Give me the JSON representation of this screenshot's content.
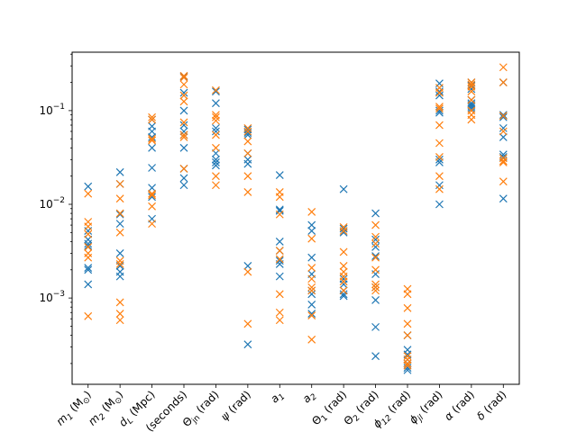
{
  "chart_data": {
    "type": "scatter",
    "y_scale": "log",
    "ylim": [
      0.00012,
      0.42
    ],
    "grid": false,
    "legend": "none",
    "marker": "x",
    "y_ticks": [
      {
        "value": 0.001,
        "base": "10",
        "exp": "−3"
      },
      {
        "value": 0.01,
        "base": "10",
        "exp": "−2"
      },
      {
        "value": 0.1,
        "base": "10",
        "exp": "−1"
      }
    ],
    "categories": [
      {
        "main": "m",
        "sub": "1",
        "unit": " (M",
        "unit_sub": "⊙",
        "close": ")"
      },
      {
        "main": "m",
        "sub": "2",
        "unit": " (M",
        "unit_sub": "⊙",
        "close": ")"
      },
      {
        "main": "d",
        "sub": "L",
        "unit": " (Mpc)",
        "unit_sub": "",
        "close": ""
      },
      {
        "main": "t",
        "sub": "c",
        "unit": " (seconds)",
        "unit_sub": "",
        "close": ""
      },
      {
        "main": "Θ",
        "sub": "jn",
        "unit": " (rad)",
        "unit_sub": "",
        "close": ""
      },
      {
        "main": "ψ",
        "sub": "",
        "unit": " (rad)",
        "unit_sub": "",
        "close": ""
      },
      {
        "main": "a",
        "sub": "1",
        "unit": "",
        "unit_sub": "",
        "close": ""
      },
      {
        "main": "a",
        "sub": "2",
        "unit": "",
        "unit_sub": "",
        "close": ""
      },
      {
        "main": "Θ",
        "sub": "1",
        "unit": " (rad)",
        "unit_sub": "",
        "close": ""
      },
      {
        "main": "Θ",
        "sub": "2",
        "unit": " (rad)",
        "unit_sub": "",
        "close": ""
      },
      {
        "main": "ϕ",
        "sub": "12",
        "unit": " (rad)",
        "unit_sub": "",
        "close": ""
      },
      {
        "main": "ϕ",
        "sub": "jl",
        "unit": " (rad)",
        "unit_sub": "",
        "close": ""
      },
      {
        "main": "α",
        "sub": "",
        "unit": " (rad)",
        "unit_sub": "",
        "close": ""
      },
      {
        "main": "δ",
        "sub": "",
        "unit": " (rad)",
        "unit_sub": "",
        "close": ""
      }
    ],
    "series": [
      {
        "color": "#1f77b4",
        "values": [
          [
            0.0155,
            0.0052,
            0.0042,
            0.0038,
            0.0036,
            0.0021,
            0.002,
            0.0014
          ],
          [
            0.022,
            0.0165,
            0.0078,
            0.0062,
            0.003,
            0.0022,
            0.0019,
            0.0017
          ],
          [
            0.08,
            0.068,
            0.06,
            0.052,
            0.04,
            0.0245,
            0.015,
            0.012,
            0.007
          ],
          [
            0.23,
            0.155,
            0.1,
            0.07,
            0.06,
            0.055,
            0.04,
            0.024,
            0.019,
            0.016
          ],
          [
            0.16,
            0.12,
            0.065,
            0.06,
            0.035,
            0.03,
            0.028,
            0.026
          ],
          [
            0.063,
            0.058,
            0.055,
            0.035,
            0.03,
            0.027,
            0.0022,
            0.00032
          ],
          [
            0.0205,
            0.0088,
            0.0085,
            0.004,
            0.0032,
            0.0025,
            0.0023,
            0.0017
          ],
          [
            0.006,
            0.0052,
            0.0027,
            0.0018,
            0.0012,
            0.0011,
            0.00085,
            0.00068
          ],
          [
            0.0145,
            0.0055,
            0.005,
            0.0016,
            0.0014,
            0.0012,
            0.0011,
            0.00105
          ],
          [
            0.008,
            0.0042,
            0.0035,
            0.0028,
            0.0018,
            0.0013,
            0.00095,
            0.00049,
            0.00024
          ],
          [
            0.0004,
            0.00028,
            0.00025,
            0.00022,
            0.0002,
            0.00019,
            0.00018,
            0.00017
          ],
          [
            0.195,
            0.16,
            0.145,
            0.1,
            0.095,
            0.03,
            0.028,
            0.016,
            0.01
          ],
          [
            0.2,
            0.185,
            0.17,
            0.13,
            0.12,
            0.115,
            0.11,
            0.105
          ],
          [
            0.2,
            0.09,
            0.085,
            0.065,
            0.052,
            0.034,
            0.032,
            0.0115
          ]
        ]
      },
      {
        "color": "#ff7f0e",
        "values": [
          [
            0.013,
            0.0065,
            0.0058,
            0.0048,
            0.0035,
            0.003,
            0.0027,
            0.00064
          ],
          [
            0.0165,
            0.0115,
            0.008,
            0.005,
            0.0025,
            0.0023,
            0.0009,
            0.00068,
            0.00058
          ],
          [
            0.085,
            0.08,
            0.05,
            0.048,
            0.013,
            0.0125,
            0.0095,
            0.0062
          ],
          [
            0.235,
            0.225,
            0.19,
            0.145,
            0.125,
            0.075,
            0.055,
            0.052,
            0.024
          ],
          [
            0.165,
            0.09,
            0.085,
            0.078,
            0.055,
            0.04,
            0.02,
            0.016
          ],
          [
            0.065,
            0.06,
            0.047,
            0.035,
            0.02,
            0.0135,
            0.0019,
            0.00053
          ],
          [
            0.0135,
            0.012,
            0.0078,
            0.0032,
            0.0026,
            0.0011,
            0.0007,
            0.00058
          ],
          [
            0.0083,
            0.0043,
            0.0021,
            0.0016,
            0.0013,
            0.0012,
            0.00065,
            0.00036
          ],
          [
            0.0057,
            0.0052,
            0.0031,
            0.0022,
            0.0019,
            0.0017,
            0.0015,
            0.0012
          ],
          [
            0.006,
            0.0045,
            0.0038,
            0.0027,
            0.002,
            0.0014,
            0.0013,
            0.0012
          ],
          [
            0.00125,
            0.0011,
            0.00078,
            0.00053,
            0.0004,
            0.00024,
            0.00022,
            0.0002,
            0.00019
          ],
          [
            0.175,
            0.155,
            0.11,
            0.105,
            0.07,
            0.045,
            0.032,
            0.02,
            0.0145
          ],
          [
            0.2,
            0.19,
            0.18,
            0.16,
            0.13,
            0.1,
            0.09,
            0.08
          ],
          [
            0.29,
            0.2,
            0.088,
            0.06,
            0.031,
            0.029,
            0.028,
            0.0175
          ]
        ]
      }
    ]
  }
}
